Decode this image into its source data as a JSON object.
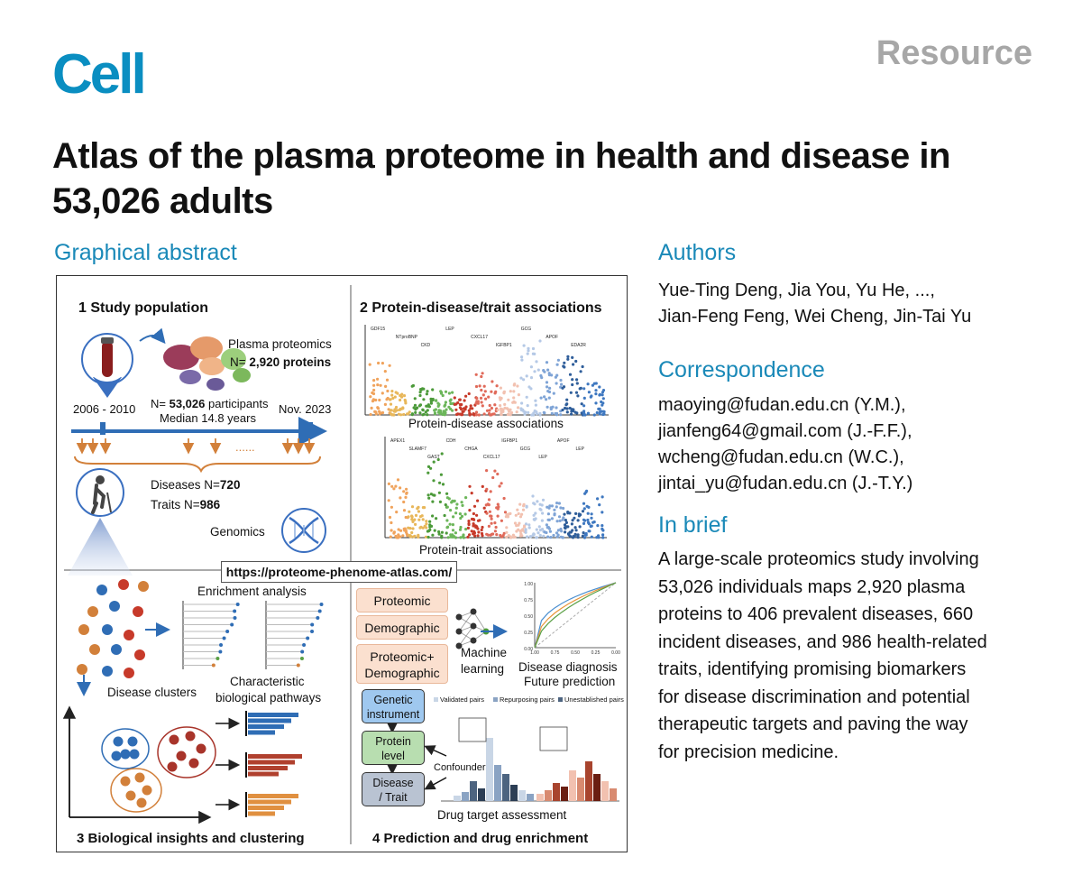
{
  "journal": "Cell",
  "article_type": "Resource",
  "title": "Atlas of the plasma proteome in health and disease in 53,026 adults",
  "graphical_abstract_heading": "Graphical abstract",
  "authors_heading": "Authors",
  "authors": [
    "Yue-Ting Deng, Jia You, Yu He, ...,",
    "Jian-Feng Feng, Wei Cheng, Jin-Tai Yu"
  ],
  "correspondence_heading": "Correspondence",
  "correspondence": [
    "maoying@fudan.edu.cn (Y.M.),",
    "jianfeng64@gmail.com (J.-F.F.),",
    "wcheng@fudan.edu.cn (W.C.),",
    "jintai_yu@fudan.edu.cn (J.-T.Y.)"
  ],
  "in_brief_heading": "In brief",
  "in_brief": [
    "A large-scale proteomics study involving",
    "53,026 individuals maps 2,920 plasma",
    "proteins to 406 prevalent diseases, 660",
    "incident diseases, and 986 health-related",
    "traits, identifying promising biomarkers",
    "for disease discrimination and potential",
    "therapeutic targets and paving the way",
    "for precision medicine."
  ],
  "ga": {
    "p1_title": "1 Study population",
    "p2_title": "2 Protein-disease/trait associations",
    "p3_title": "3 Biological insights and clustering",
    "p4_title": "4 Prediction and drug enrichment",
    "plasma_proteomics": "Plasma proteomics",
    "n_proteins_prefix": "N= ",
    "n_proteins": "2,920 proteins",
    "start_period": "2006 - 2010",
    "end_date": "Nov. 2023",
    "n_participants_prefix": "N= ",
    "n_participants": "53,026",
    "participants_word": " participants",
    "median_followup": "Median 14.8 years",
    "dots": "......",
    "diseases_label": "Diseases N=",
    "diseases_n": "720",
    "traits_label": "Traits N=",
    "traits_n": "986",
    "genomics": "Genomics",
    "protein_disease_assoc": "Protein-disease associations",
    "protein_trait_assoc": "Protein-trait associations",
    "url": "https://proteome-phenome-atlas.com/",
    "enrichment_analysis": "Enrichment analysis",
    "disease_clusters": "Disease clusters",
    "characteristic": "Characteristic",
    "biological_pathways": "biological pathways",
    "model_proteomic": "Proteomic",
    "model_demographic": "Demographic",
    "model_combined_1": "Proteomic+",
    "model_combined_2": "Demographic",
    "machine": "Machine",
    "learning": "learning",
    "disease_diagnosis": "Disease diagnosis",
    "future_prediction": "Future prediction",
    "roc_y_ticks": [
      "1.00",
      "0.75",
      "0.50",
      "0.25",
      "0.00"
    ],
    "roc_x_ticks": [
      "1.00",
      "0.75",
      "0.50",
      "0.25",
      "0.00"
    ],
    "legend_validated": "Validated pairs",
    "legend_repurposing": "Repurposing pairs",
    "legend_unestablished": "Unestablished pairs",
    "genetic": "Genetic",
    "instrument": "instrument",
    "protein": "Protein",
    "level": "level",
    "disease": "Disease",
    "trait": "/ Trait",
    "confounders": "Confounders",
    "drug_target_assessment": "Drug target  assessment",
    "manhattan_labels_disease": [
      "GDF15",
      "NTproBNP",
      "CKD",
      "LEP",
      "CXCL17",
      "IGFBP1",
      "GCG",
      "APOF",
      "EDA2R"
    ],
    "manhattan_labels_trait": [
      "APEX1",
      "SLAMF7",
      "GAST",
      "CDH",
      "CHGA",
      "CXCL17",
      "IGFBP1",
      "GCG",
      "LEP",
      "APOF",
      "LEP"
    ]
  },
  "colors": {
    "cell_blue": "#0a8ec1",
    "resource_gray": "#a7a7a7",
    "heading_blue": "#1a89b8"
  }
}
